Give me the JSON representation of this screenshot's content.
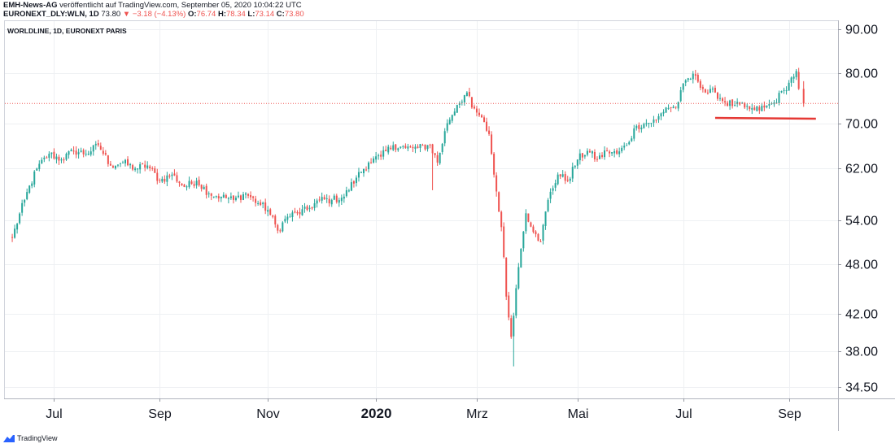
{
  "header": {
    "publisher": "EMH-News-AG",
    "published_text": "veröffentlicht auf TradingView.com, September 05, 2020 10:04:22 UTC",
    "symbol": "EURONEXT_DLY:WLN, 1D",
    "last": "73.80",
    "change": "−3.18 (−4.13%)",
    "o_label": "O:",
    "o_value": "76.74",
    "h_label": "H:",
    "h_value": "78.34",
    "l_label": "L:",
    "l_value": "73.14",
    "c_label": "C:",
    "c_value": "73.80"
  },
  "footer": {
    "brand": "TradingView"
  },
  "colors": {
    "up": "#26a69a",
    "down": "#ef5350",
    "support_line": "#e53935",
    "last_price_line": "#ef5350",
    "grid": "#eef0f3",
    "axis": "#9598a1"
  },
  "chart_data": {
    "type": "candlestick",
    "title": "WORLDLINE, 1D, EURONEXT PARIS",
    "y_scale": "log",
    "ylim": [
      33.5,
      92
    ],
    "y_ticks": [
      90,
      80,
      70,
      62,
      54,
      48,
      42,
      38,
      34.5
    ],
    "y_tick_labels": [
      "90.00",
      "80.00",
      "70.00",
      "62.00",
      "54.00",
      "48.00",
      "42.00",
      "38.00",
      "34.50"
    ],
    "x_tick_labels": [
      "Jul",
      "Sep",
      "Nov",
      "2020",
      "Mrz",
      "Mai",
      "Jul",
      "Sep"
    ],
    "x_tick_index": [
      17,
      60,
      104,
      148,
      189,
      230,
      273,
      316
    ],
    "x_index_range": [
      -3,
      336
    ],
    "last_price": 73.8,
    "support_level": 71.0,
    "support_index_range": [
      286,
      327
    ],
    "anchors": [
      [
        0,
        51.5
      ],
      [
        5,
        57
      ],
      [
        10,
        62
      ],
      [
        15,
        64.5
      ],
      [
        20,
        63.5
      ],
      [
        25,
        65
      ],
      [
        30,
        64.5
      ],
      [
        35,
        66
      ],
      [
        40,
        62.5
      ],
      [
        45,
        63
      ],
      [
        50,
        62
      ],
      [
        55,
        62.5
      ],
      [
        60,
        60
      ],
      [
        65,
        61
      ],
      [
        70,
        59
      ],
      [
        75,
        60
      ],
      [
        80,
        58
      ],
      [
        85,
        57.5
      ],
      [
        90,
        57
      ],
      [
        95,
        58
      ],
      [
        100,
        56.5
      ],
      [
        104,
        55.5
      ],
      [
        108,
        52.5
      ],
      [
        112,
        54.5
      ],
      [
        116,
        55
      ],
      [
        120,
        55.5
      ],
      [
        125,
        57
      ],
      [
        130,
        57
      ],
      [
        135,
        57.5
      ],
      [
        140,
        60.5
      ],
      [
        145,
        63
      ],
      [
        150,
        64
      ],
      [
        155,
        66
      ],
      [
        160,
        65.5
      ],
      [
        165,
        65.5
      ],
      [
        170,
        66
      ],
      [
        173,
        63
      ],
      [
        177,
        70
      ],
      [
        181,
        73.5
      ],
      [
        185,
        76
      ],
      [
        187,
        73
      ],
      [
        190,
        71.5
      ],
      [
        194,
        68
      ],
      [
        196,
        61
      ],
      [
        199,
        53
      ],
      [
        201,
        44
      ],
      [
        203,
        39.5
      ],
      [
        205,
        45
      ],
      [
        207,
        50
      ],
      [
        209,
        55
      ],
      [
        213,
        52
      ],
      [
        215,
        51
      ],
      [
        218,
        57
      ],
      [
        222,
        61
      ],
      [
        226,
        60
      ],
      [
        230,
        63.5
      ],
      [
        234,
        65
      ],
      [
        238,
        63.5
      ],
      [
        242,
        65
      ],
      [
        246,
        64.5
      ],
      [
        250,
        66
      ],
      [
        254,
        69.5
      ],
      [
        258,
        70
      ],
      [
        262,
        70.5
      ],
      [
        266,
        73
      ],
      [
        270,
        73
      ],
      [
        274,
        78.5
      ],
      [
        278,
        79.5
      ],
      [
        282,
        76
      ],
      [
        286,
        76
      ],
      [
        290,
        74
      ],
      [
        294,
        73.5
      ],
      [
        298,
        73
      ],
      [
        302,
        72.5
      ],
      [
        306,
        73
      ],
      [
        310,
        74
      ],
      [
        314,
        76.5
      ],
      [
        316,
        78
      ],
      [
        319,
        80.5
      ],
      [
        320,
        76.74
      ],
      [
        321,
        73.8
      ]
    ],
    "last_candle": {
      "open": 76.74,
      "high": 78.34,
      "low": 73.14,
      "close": 73.8
    },
    "spikes": [
      [
        171,
        64,
        58.5
      ],
      [
        204,
        41,
        36.5
      ],
      [
        197,
        60,
        57.5
      ]
    ]
  }
}
